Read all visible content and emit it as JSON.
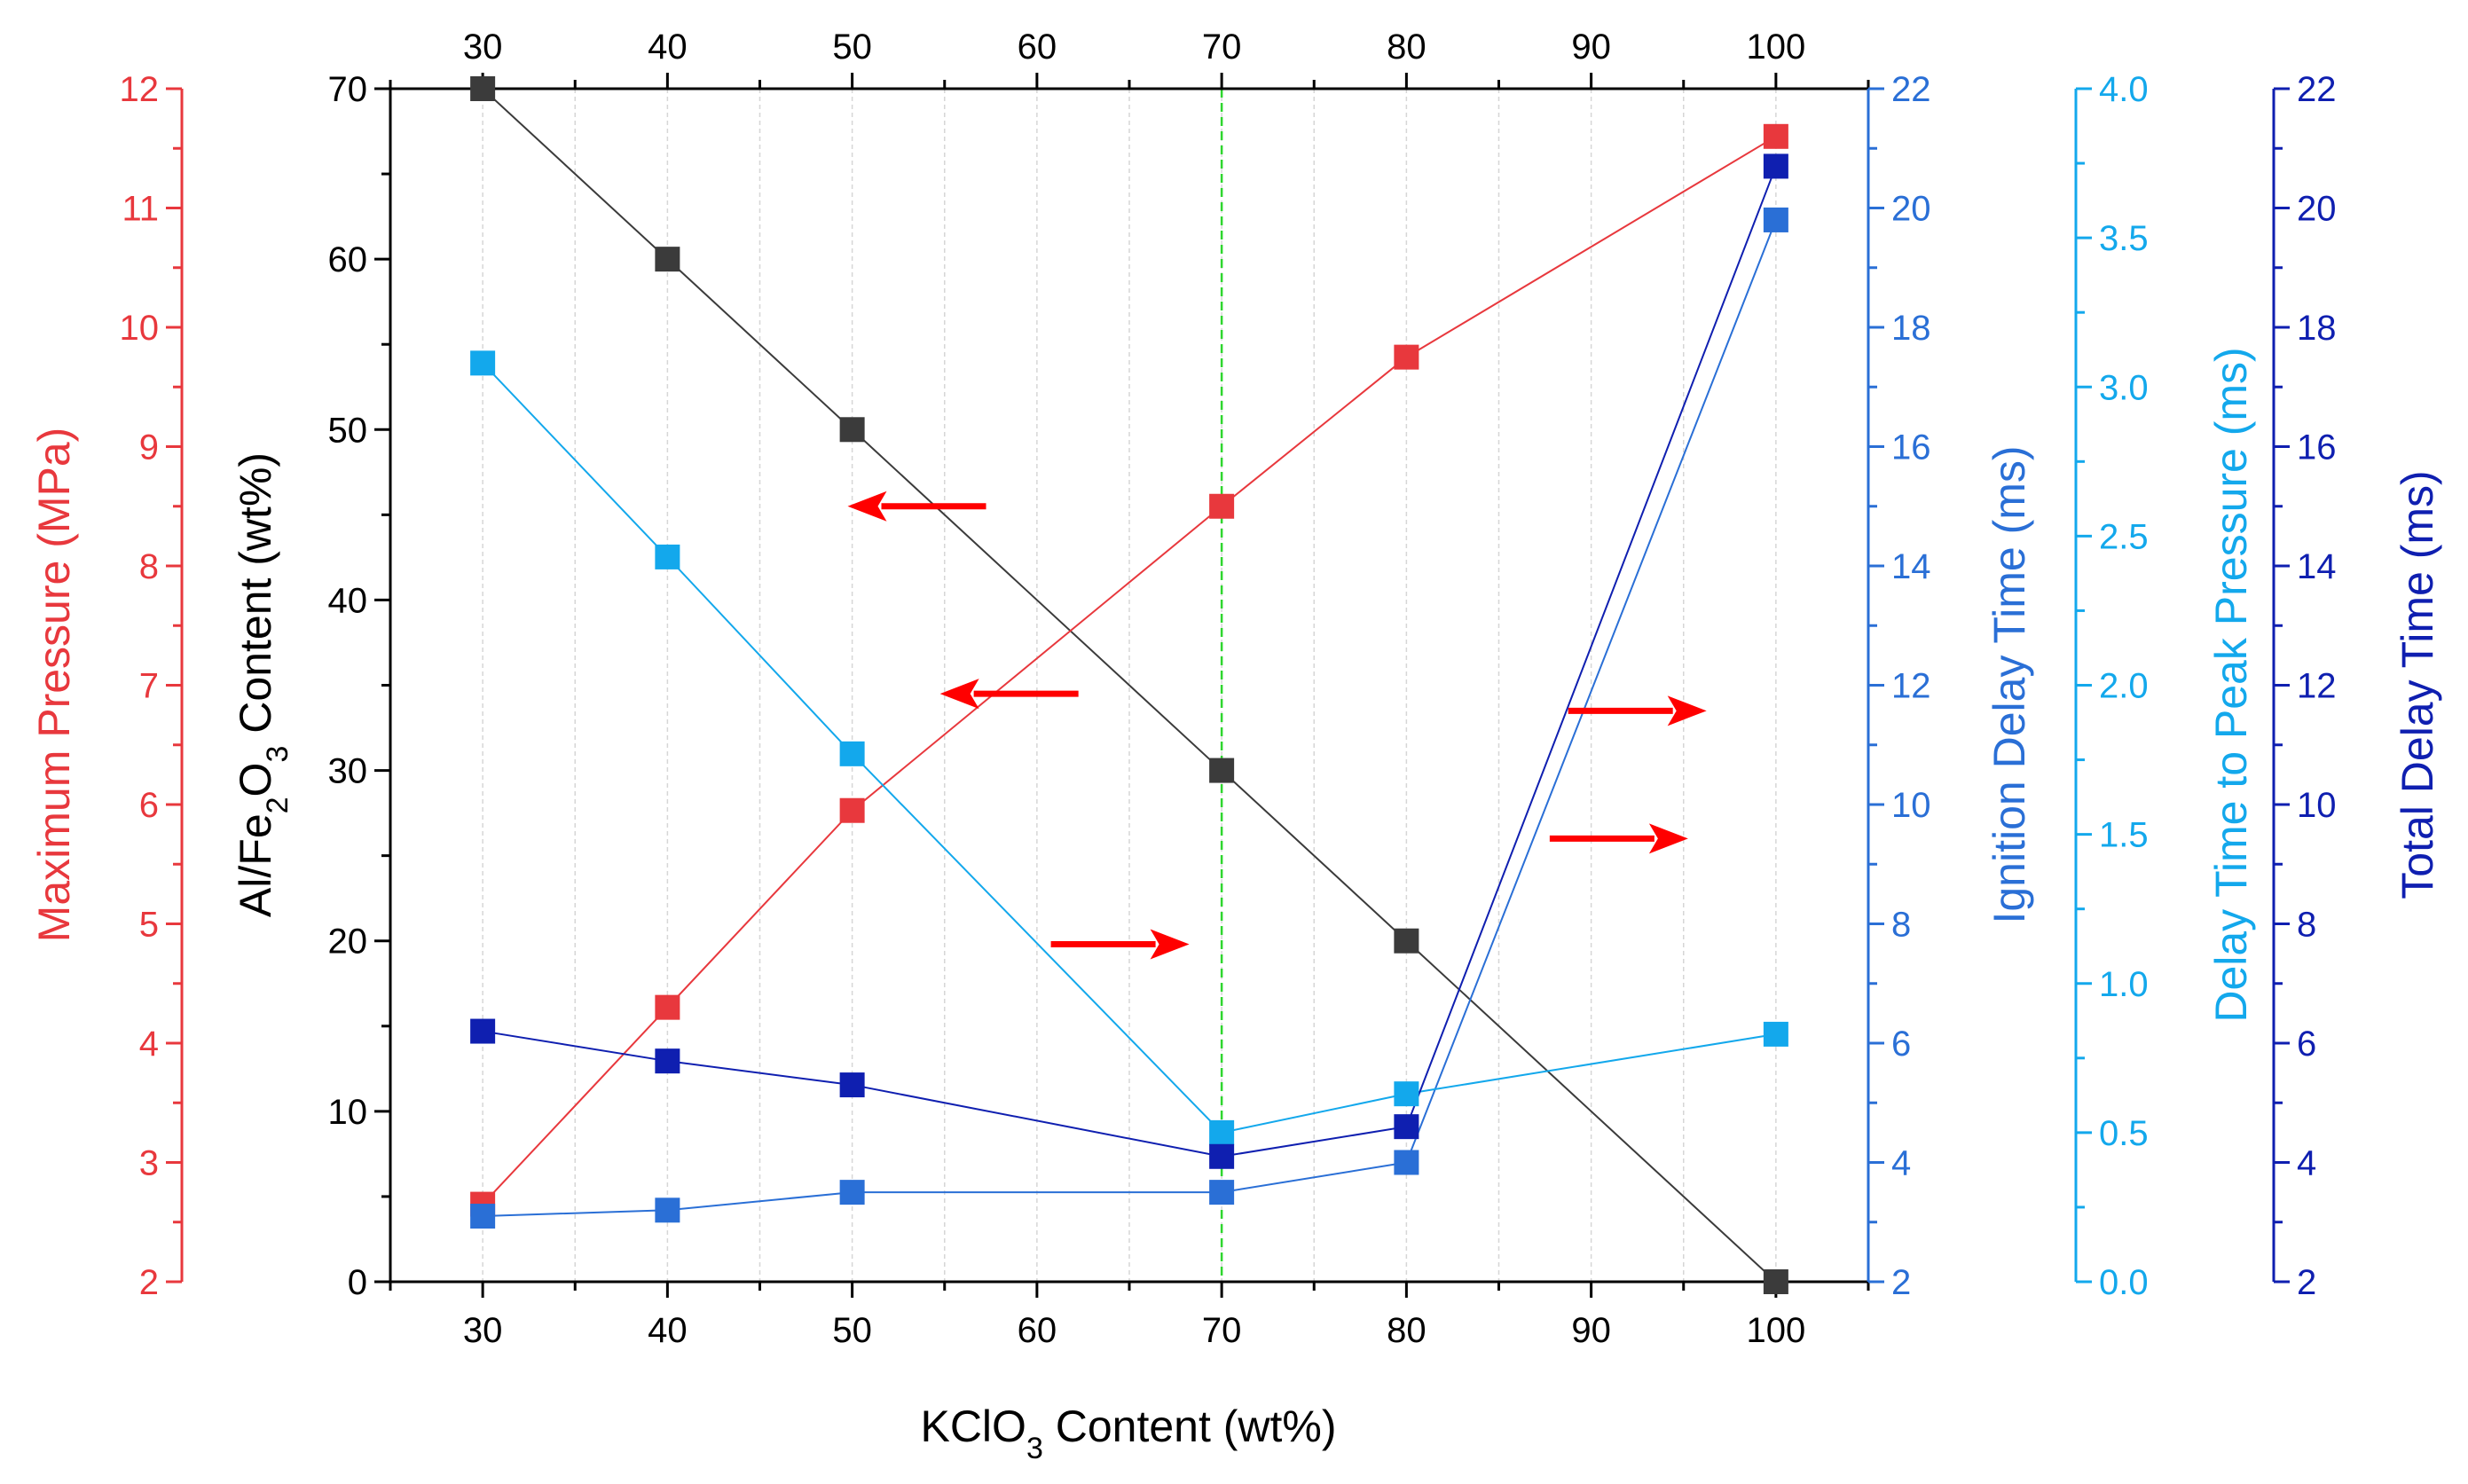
{
  "chart_data": {
    "type": "line",
    "x": [
      30,
      40,
      50,
      70,
      80,
      100
    ],
    "xlim": [
      25,
      105
    ],
    "xticks": [
      30,
      40,
      50,
      60,
      70,
      80,
      90,
      100
    ],
    "xlabel": {
      "main": "KClO",
      "sub": "3",
      "rest": " Content (wt%)"
    },
    "reference_line_x": 70,
    "axes": [
      {
        "id": "content",
        "label": {
          "a": "Al/Fe",
          "b": "2",
          "c": "O",
          "d": "3",
          "e": " Content (wt%)"
        },
        "ylim": [
          0,
          70
        ],
        "ticks": [
          0,
          10,
          20,
          30,
          40,
          50,
          60,
          70
        ],
        "color": "#000000"
      },
      {
        "id": "pressure",
        "label": "Maximum Pressure (MPa)",
        "ylim": [
          2,
          12
        ],
        "ticks": [
          2,
          3,
          4,
          5,
          6,
          7,
          8,
          9,
          10,
          11,
          12
        ],
        "color": "#e8383d"
      },
      {
        "id": "ignition",
        "label": "Ignition Delay Time (ms)",
        "ylim": [
          2,
          22
        ],
        "ticks": [
          2,
          4,
          6,
          8,
          10,
          12,
          14,
          16,
          18,
          20,
          22
        ],
        "color": "#2a6fd6"
      },
      {
        "id": "peak",
        "label": "Delay Time to Peak Pressure (ms)",
        "ylim": [
          0,
          4
        ],
        "ticks": [
          "0.0",
          "0.5",
          "1.0",
          "1.5",
          "2.0",
          "2.5",
          "3.0",
          "3.5",
          "4.0"
        ],
        "color": "#13a8ec"
      },
      {
        "id": "total",
        "label": "Total Delay Time (ms)",
        "ylim": [
          2,
          22
        ],
        "ticks": [
          2,
          4,
          6,
          8,
          10,
          12,
          14,
          16,
          18,
          20,
          22
        ],
        "color": "#0f1fb0"
      }
    ],
    "series": [
      {
        "name": "Al/Fe2O3 Content",
        "axis": "content",
        "color": "#3b3b3b",
        "line": "#3b3b3b",
        "values": [
          70,
          60,
          50,
          30,
          20,
          0
        ]
      },
      {
        "name": "Maximum Pressure",
        "axis": "pressure",
        "color": "#e8383d",
        "line": "#e8383d",
        "values": [
          2.65,
          4.3,
          5.95,
          8.5,
          9.75,
          11.6
        ]
      },
      {
        "name": "Ignition Delay Time",
        "axis": "ignition",
        "color": "#2a6fd6",
        "line": "#2a6fd6",
        "values": [
          3.1,
          3.2,
          3.5,
          3.5,
          4.0,
          19.8
        ]
      },
      {
        "name": "Delay Time to Peak Pressure",
        "axis": "peak",
        "color": "#13a8ec",
        "line": "#13a8ec",
        "values": [
          3.08,
          2.43,
          1.77,
          0.5,
          0.63,
          0.83
        ]
      },
      {
        "name": "Total Delay Time",
        "axis": "total",
        "color": "#0f1fb0",
        "line": "#0f1fb0",
        "values": [
          6.2,
          5.7,
          5.3,
          4.1,
          4.6,
          20.7
        ]
      }
    ],
    "annotations": [
      {
        "direction": "left",
        "points_to": "Maximum Pressure axis",
        "at": [
          53.5,
          8.5
        ],
        "axis": "pressure"
      },
      {
        "direction": "left",
        "points_to": "Al/Fe2O3 Content axis",
        "at": [
          58.5,
          34.5
        ],
        "axis": "content"
      },
      {
        "direction": "right",
        "points_to": "Ignition Delay Time axis",
        "at": [
          64.5,
          19.8
        ],
        "axis": "content"
      },
      {
        "direction": "right",
        "points_to": "Total Delay Time axis",
        "at": [
          92.5,
          33.5
        ],
        "axis": "content"
      },
      {
        "direction": "right",
        "points_to": "Delay Time to Peak Pressure axis",
        "at": [
          91.5,
          26.0
        ],
        "axis": "content"
      }
    ]
  }
}
